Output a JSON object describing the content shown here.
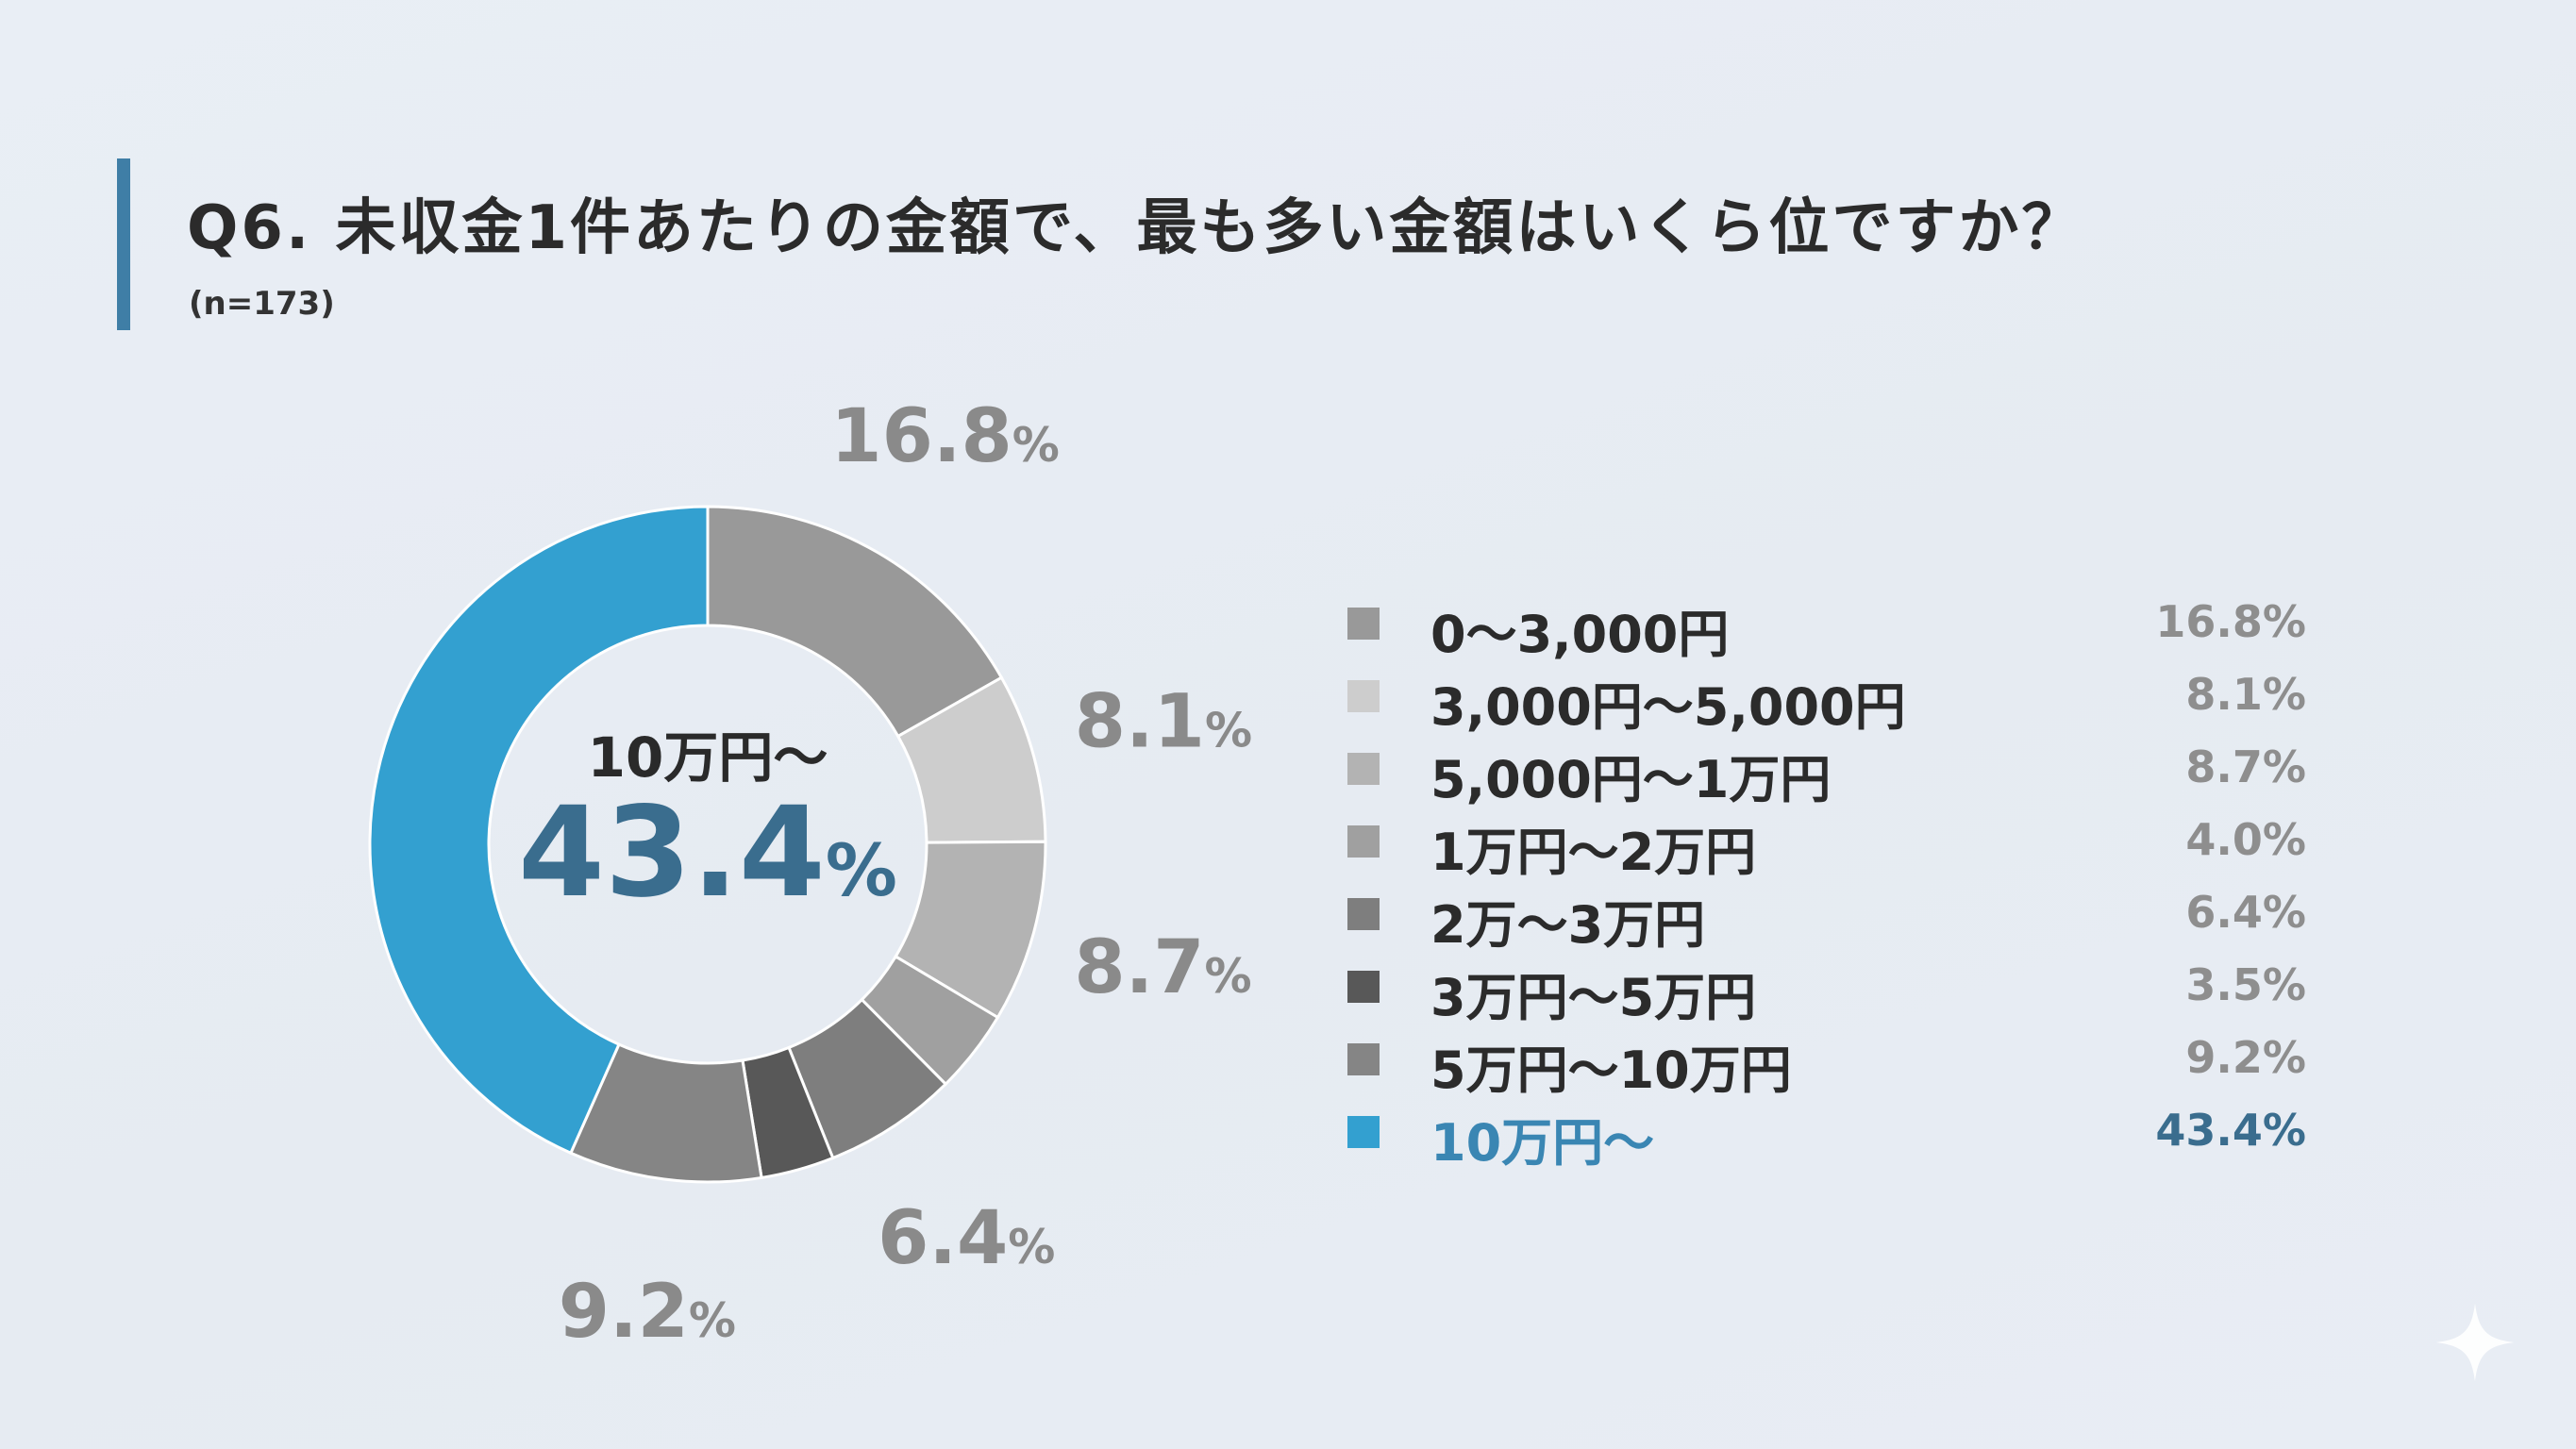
{
  "title": "Q6. 未収金1件あたりの金額で、最も多い金額はいくら位ですか？",
  "sample_size": "(n=173)",
  "center_label": {
    "category": "10万円〜",
    "value": "43.4",
    "unit": "%"
  },
  "chart_data": {
    "type": "pie",
    "variant": "donut",
    "unit": "%",
    "categories": [
      "0〜3,000円",
      "3,000円〜5,000円",
      "5,000円〜1万円",
      "1万円〜2万円",
      "2万〜3万円",
      "3万円〜5万円",
      "5万円〜10万円",
      "10万円〜"
    ],
    "values": [
      16.8,
      8.1,
      8.7,
      4.0,
      6.4,
      3.5,
      9.2,
      43.4
    ],
    "value_labels": [
      "16.8%",
      "8.1%",
      "8.7%",
      "4.0%",
      "6.4%",
      "3.5%",
      "9.2%",
      "43.4%"
    ],
    "colors": [
      "#999999",
      "#cdcdcd",
      "#b3b3b3",
      "#a0a0a0",
      "#7e7e7e",
      "#585858",
      "#858585",
      "#33a0d0"
    ],
    "highlight_color": "#33a0d0",
    "highlight_index": 7,
    "outer_labels_for": [
      0,
      1,
      2,
      4,
      6
    ],
    "start_angle": "12 o'clock",
    "direction": "clockwise",
    "legend": "right"
  },
  "legend_items": [
    {
      "label": "0〜3,000円",
      "value": "16.8%",
      "color": "#999999"
    },
    {
      "label": "3,000円〜5,000円",
      "value": "8.1%",
      "color": "#cdcdcd"
    },
    {
      "label": "5,000円〜1万円",
      "value": "8.7%",
      "color": "#b3b3b3"
    },
    {
      "label": "1万円〜2万円",
      "value": "4.0%",
      "color": "#a0a0a0"
    },
    {
      "label": "2万〜3万円",
      "value": "6.4%",
      "color": "#7e7e7e"
    },
    {
      "label": "3万円〜5万円",
      "value": "3.5%",
      "color": "#585858"
    },
    {
      "label": "5万円〜10万円",
      "value": "9.2%",
      "color": "#858585"
    },
    {
      "label": "10万円〜",
      "value": "43.4%",
      "color": "#33a0d0"
    }
  ]
}
